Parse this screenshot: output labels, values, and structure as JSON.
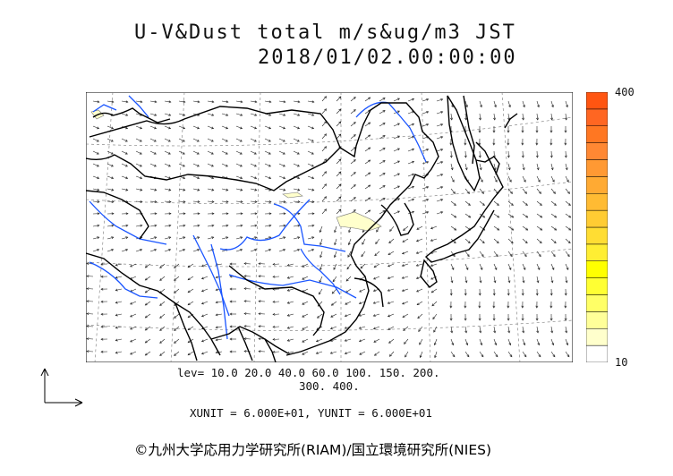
{
  "header": {
    "title": "U-V&Dust total m/s&ug/m3 JST",
    "timestamp": "2018/01/02.00:00:00"
  },
  "legend": {
    "max_label": "400",
    "min_label": "10",
    "colors": [
      "#ffffff",
      "#ffffcc",
      "#ffff99",
      "#ffff66",
      "#ffff33",
      "#ffff00",
      "#ffee33",
      "#ffdd33",
      "#ffcc33",
      "#ffbb33",
      "#ffaa33",
      "#ff9933",
      "#ff8833",
      "#ff7722",
      "#ff6622",
      "#ff5511"
    ]
  },
  "levels": {
    "line1": "lev= 10.0 20.0 40.0 60.0 100. 150. 200.",
    "line2": "300. 400."
  },
  "units": {
    "text": "XUNIT = 6.000E+01, YUNIT = 6.000E+01"
  },
  "credit": {
    "text": "©九州大学応用力学研究所(RIAM)/国立環境研究所(NIES)"
  },
  "colors": {
    "coast": "#000000",
    "river": "#1a55ff",
    "dust_low": "#ffffcc"
  }
}
